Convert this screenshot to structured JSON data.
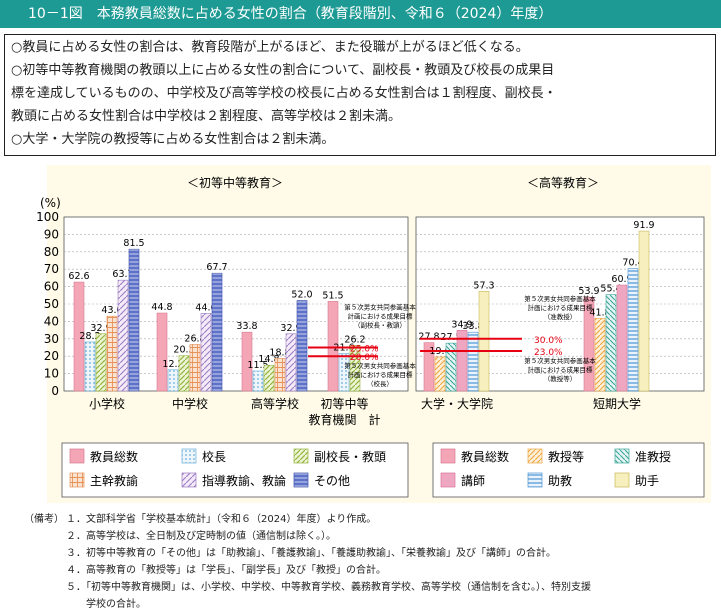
{
  "title": "10－1図　本務教員総数に占める女性の割合（教育段階別、令和６（2024）年度）",
  "summary": [
    "○教員に占める女性の割合は、教育段階が上がるほど、また役職が上がるほど低くなる。",
    "○初等中等教育機関の教頭以上に占める女性の割合について、副校長・教頭及び校長の成果目",
    "標を達成しているものの、中学校及び高等学校の校長に占める女性割合は１割程度、副校長・",
    "教頭に占める女性割合は中学校は２割程度、高等学校は２割未満。",
    "○大学・大学院の教授等に占める女性割合は２割未満。"
  ],
  "notes_label": "（備考）",
  "notes": [
    "１．文部科学省「学校基本統計」（令和６（2024）年度）より作成。",
    "２．高等学校は、全日制及び定時制の値（通信制は除く。）。",
    "３．初等中等教育の「その他」は「助教諭」、「養護教諭」、「養護助教諭」、「栄養教諭」及び「講師」の合計。",
    "４．高等教育の「教授等」は「学長」、「副学長」及び「教授」の合計。",
    "５．「初等中等教育機関」は、小学校、中学校、中等教育学校、義務教育学校、高等学校（通信制を含む。）、特別支援",
    "　　学校の合計。"
  ],
  "colors": {
    "title_bg": "#1d9a93",
    "target_line": "#e60012",
    "s1": "#f4a6b7",
    "s2": "#a6d1ea",
    "s3": "#c6d98a",
    "s4": "#f3b793",
    "s5": "#d2bde0",
    "s6": "#5d72c8",
    "s7": "#f9d49b",
    "s8": "#8fcfc8",
    "s9": "#fbe6a8",
    "s10": "#7fb1df"
  },
  "chart_data": [
    {
      "type": "bar",
      "title": "＜初等中等教育＞",
      "ylabel": "(%)",
      "ylim": [
        0,
        100
      ],
      "yticks": [
        0,
        10,
        20,
        30,
        40,
        50,
        60,
        70,
        80,
        90,
        100
      ],
      "grid": true,
      "categories": [
        "小学校",
        "中学校",
        "高等学校",
        "初等中等\n教育機関　計"
      ],
      "series": [
        {
          "name": "教員総数",
          "values": [
            62.6,
            44.8,
            33.8,
            51.5
          ]
        },
        {
          "name": "校長",
          "values": [
            28.2,
            12.2,
            11.5,
            21.6
          ]
        },
        {
          "name": "副校長・教頭",
          "values": [
            32.9,
            20.3,
            14.8,
            26.2
          ]
        },
        {
          "name": "主幹教諭",
          "values": [
            43.0,
            26.8,
            18.8,
            null
          ]
        },
        {
          "name": "指導教諭、教論",
          "values": [
            63.7,
            44.6,
            32.9,
            null
          ]
        },
        {
          "name": "その他",
          "values": [
            81.5,
            67.7,
            52.0,
            null
          ]
        }
      ],
      "targets": [
        {
          "label": "第５次男女共同参画基本計画における成果目標（副校長・教頭）",
          "value": 25.0,
          "value_label": "25.0%"
        },
        {
          "label": "第５次男女共同参画基本計画における成果目標（校長）",
          "value": 20.0,
          "value_label": "20.0%"
        }
      ]
    },
    {
      "type": "bar",
      "title": "＜高等教育＞",
      "ylim": [
        0,
        100
      ],
      "grid": true,
      "categories": [
        "大学・大学院",
        "短期大学"
      ],
      "series": [
        {
          "name": "教員総数",
          "values": [
            27.8,
            53.9
          ]
        },
        {
          "name": "教授等",
          "values": [
            19.6,
            41.8
          ]
        },
        {
          "name": "准教授",
          "values": [
            27.5,
            55.4
          ]
        },
        {
          "name": "講師",
          "values": [
            34.9,
            60.9
          ]
        },
        {
          "name": "助教",
          "values": [
            33.8,
            70.4
          ]
        },
        {
          "name": "助手",
          "values": [
            57.3,
            91.9
          ]
        }
      ],
      "targets": [
        {
          "label": "第５次男女共同参画基本計画における成果目標（准教授）",
          "value": 30.0,
          "value_label": "30.0%"
        },
        {
          "label": "第５次男女共同参画基本計画における成果目標（教授等）",
          "value": 23.0,
          "value_label": "23.0%"
        }
      ]
    }
  ]
}
